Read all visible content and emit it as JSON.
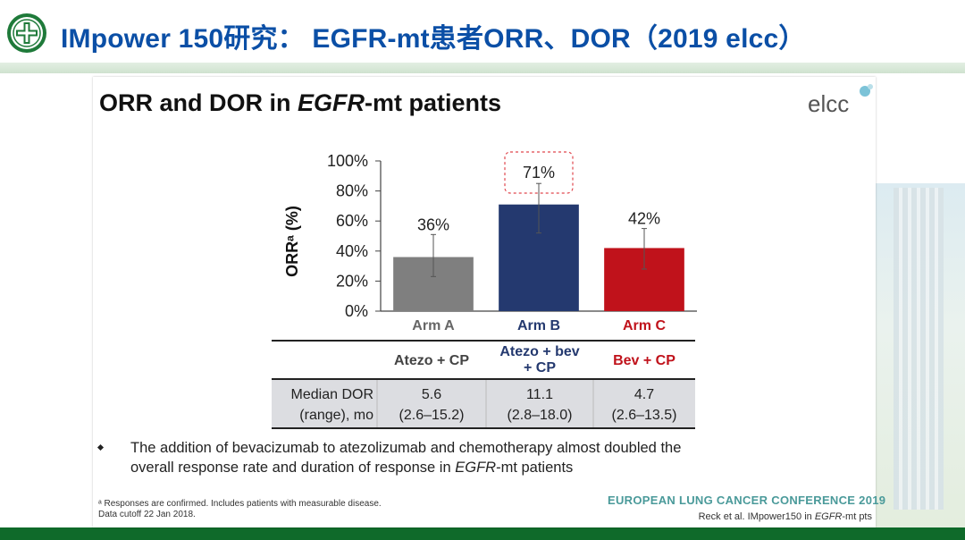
{
  "header": {
    "title": "IMpower 150研究： EGFR-mt患者ORR、DOR（2019 elcc）"
  },
  "slide": {
    "title_before": "ORR and DOR in ",
    "title_italic": "EGFR",
    "title_after": "-mt patients",
    "brand_text": "elcc",
    "bullet_before": "The addition of bevacizumab to atezolizumab and chemotherapy almost doubled the overall response rate and duration of response in ",
    "bullet_italic": "EGFR",
    "bullet_after": "-mt patients",
    "footnote_line1": "ᵃ Responses are confirmed. Includes patients with measurable disease.",
    "footnote_line2": "Data cutoff 22 Jan 2018.",
    "conference": "EUROPEAN LUNG CANCER CONFERENCE 2019",
    "citation_before": "Reck et al. IMpower150 in ",
    "citation_italic": "EGFR",
    "citation_after": "-mt pts"
  },
  "chart_data": {
    "type": "bar",
    "categories": [
      "Arm A",
      "Arm B",
      "Arm C"
    ],
    "values": [
      36,
      71,
      42
    ],
    "data_labels": [
      "36%",
      "71%",
      "42%"
    ],
    "error_low": [
      23,
      52,
      28
    ],
    "error_high": [
      51,
      85,
      55
    ],
    "colors": [
      "#7f7f7f",
      "#24396f",
      "#c0121b"
    ],
    "category_label_colors": [
      "#666666",
      "#24396f",
      "#c0121b"
    ],
    "ylabel": "ORRᵃ (%)",
    "ylim": [
      0,
      100
    ],
    "yticks": [
      "0%",
      "20%",
      "40%",
      "60%",
      "80%",
      "100%"
    ],
    "highlight_category": "Arm B",
    "highlight_color": "#e0474e"
  },
  "table": {
    "regimens": [
      "Atezo + CP",
      "Atezo + bev + CP",
      "Bev + CP"
    ],
    "regimen_colors": [
      "#444444",
      "#24396f",
      "#c0121b"
    ],
    "row_label_line1": "Median DOR",
    "row_label_line2": "(range), mo",
    "dor_values": [
      "5.6",
      "11.1",
      "4.7"
    ],
    "dor_ranges": [
      "(2.6–15.2)",
      "(2.8–18.0)",
      "(2.6–13.5)"
    ]
  },
  "colors": {
    "header_blue": "#0b4fa6",
    "footer_green": "#0f6a2a",
    "conference_teal": "#4a9a9a"
  }
}
